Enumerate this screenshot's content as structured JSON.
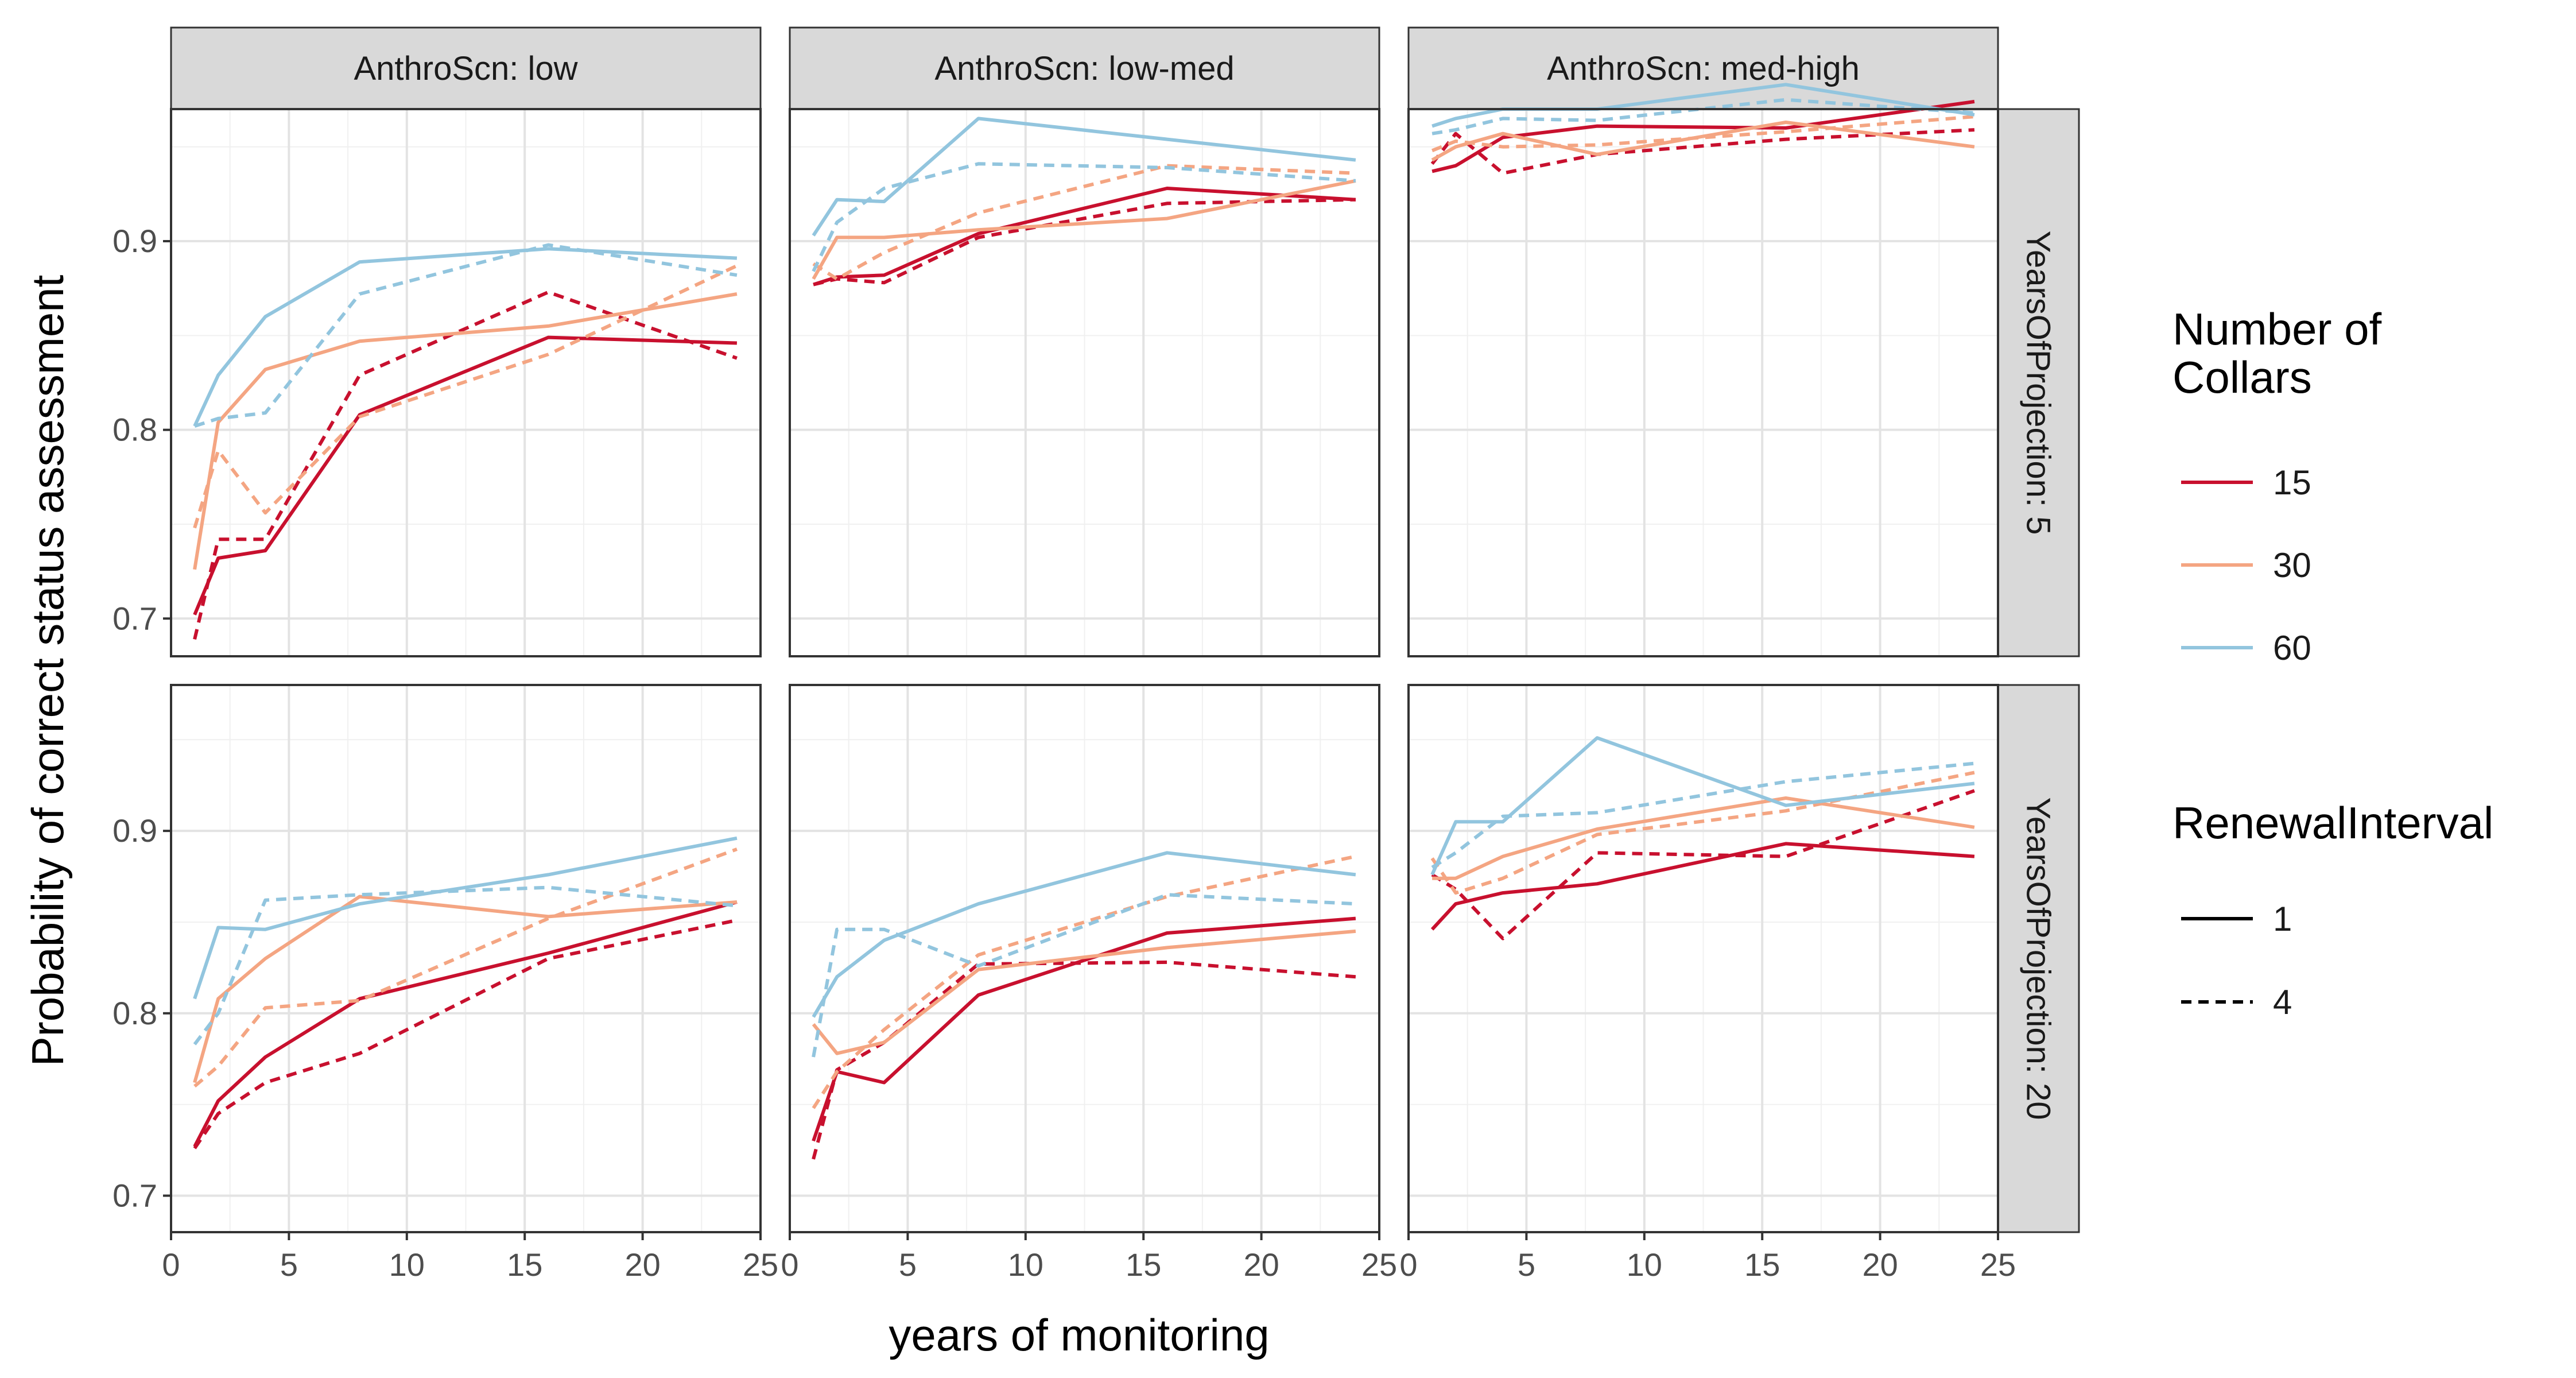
{
  "chart_data": {
    "type": "line",
    "facet_cols": {
      "label_prefix": "AnthroScn: ",
      "values": [
        "low",
        "low-med",
        "med-high"
      ]
    },
    "facet_rows": {
      "label_prefix": "YearsOfProjection: ",
      "values": [
        "5",
        "20"
      ]
    },
    "xlabel": "years of monitoring",
    "ylabel": "Probability of correct status assessment",
    "xlim": [
      0,
      25
    ],
    "xticks": [
      0,
      5,
      10,
      15,
      20,
      25
    ],
    "ylim_row1": [
      0.68,
      0.97
    ],
    "ylim_row2": [
      0.68,
      0.98
    ],
    "yticks": [
      0.7,
      0.8,
      0.9
    ],
    "ytick_labels": [
      "0.7",
      "0.8",
      "0.9"
    ],
    "grid": true,
    "x": [
      1,
      2,
      4,
      8,
      16,
      24
    ],
    "colors": {
      "15": "#c8102e",
      "30": "#f4a582",
      "60": "#92c5de"
    },
    "legend": {
      "placement": "right",
      "color_title_lines": [
        "Number of",
        " Collars"
      ],
      "color_entries": [
        "15",
        "30",
        "60"
      ],
      "linetype_title": "RenewalInterval",
      "linetype_entries": [
        "1",
        "4"
      ]
    },
    "panels": [
      {
        "col": "low",
        "row": "5",
        "series": [
          {
            "collars": "15",
            "renewal": "1",
            "values": [
              0.702,
              0.732,
              0.736,
              0.808,
              0.849,
              0.846
            ]
          },
          {
            "collars": "15",
            "renewal": "4",
            "values": [
              0.689,
              0.742,
              0.742,
              0.829,
              0.873,
              0.838
            ]
          },
          {
            "collars": "30",
            "renewal": "1",
            "values": [
              0.726,
              0.804,
              0.832,
              0.847,
              0.855,
              0.872
            ]
          },
          {
            "collars": "30",
            "renewal": "4",
            "values": [
              0.748,
              0.789,
              0.756,
              0.807,
              0.84,
              0.887
            ]
          },
          {
            "collars": "60",
            "renewal": "1",
            "values": [
              0.802,
              0.829,
              0.86,
              0.889,
              0.896,
              0.891
            ]
          },
          {
            "collars": "60",
            "renewal": "4",
            "values": [
              0.802,
              0.806,
              0.809,
              0.872,
              0.898,
              0.882
            ]
          }
        ]
      },
      {
        "col": "low-med",
        "row": "5",
        "series": [
          {
            "collars": "15",
            "renewal": "1",
            "values": [
              0.877,
              0.881,
              0.882,
              0.904,
              0.928,
              0.922
            ]
          },
          {
            "collars": "15",
            "renewal": "4",
            "values": [
              0.877,
              0.88,
              0.878,
              0.902,
              0.92,
              0.922
            ]
          },
          {
            "collars": "30",
            "renewal": "1",
            "values": [
              0.88,
              0.902,
              0.902,
              0.906,
              0.912,
              0.932
            ]
          },
          {
            "collars": "30",
            "renewal": "4",
            "values": [
              0.888,
              0.88,
              0.894,
              0.915,
              0.94,
              0.936
            ]
          },
          {
            "collars": "60",
            "renewal": "1",
            "values": [
              0.903,
              0.922,
              0.921,
              0.965,
              0.954,
              0.943
            ]
          },
          {
            "collars": "60",
            "renewal": "4",
            "values": [
              0.884,
              0.91,
              0.928,
              0.941,
              0.939,
              0.932
            ]
          }
        ]
      },
      {
        "col": "med-high",
        "row": "5",
        "series": [
          {
            "collars": "15",
            "renewal": "1",
            "values": [
              0.937,
              0.94,
              0.955,
              0.961,
              0.96,
              0.974
            ]
          },
          {
            "collars": "15",
            "renewal": "4",
            "values": [
              0.941,
              0.957,
              0.936,
              0.946,
              0.954,
              0.959
            ]
          },
          {
            "collars": "30",
            "renewal": "1",
            "values": [
              0.943,
              0.95,
              0.957,
              0.946,
              0.963,
              0.95
            ]
          },
          {
            "collars": "30",
            "renewal": "4",
            "values": [
              0.948,
              0.953,
              0.95,
              0.951,
              0.958,
              0.966
            ]
          },
          {
            "collars": "60",
            "renewal": "1",
            "values": [
              0.961,
              0.965,
              0.97,
              0.97,
              0.983,
              0.967
            ]
          },
          {
            "collars": "60",
            "renewal": "4",
            "values": [
              0.957,
              0.959,
              0.965,
              0.964,
              0.975,
              0.968
            ]
          }
        ]
      },
      {
        "col": "low",
        "row": "20",
        "series": [
          {
            "collars": "15",
            "renewal": "1",
            "values": [
              0.727,
              0.752,
              0.776,
              0.808,
              0.833,
              0.861
            ]
          },
          {
            "collars": "15",
            "renewal": "4",
            "values": [
              0.726,
              0.745,
              0.762,
              0.778,
              0.83,
              0.851
            ]
          },
          {
            "collars": "30",
            "renewal": "1",
            "values": [
              0.762,
              0.808,
              0.83,
              0.864,
              0.853,
              0.861
            ]
          },
          {
            "collars": "30",
            "renewal": "4",
            "values": [
              0.76,
              0.771,
              0.803,
              0.807,
              0.852,
              0.89
            ]
          },
          {
            "collars": "60",
            "renewal": "1",
            "values": [
              0.808,
              0.847,
              0.846,
              0.86,
              0.876,
              0.896
            ]
          },
          {
            "collars": "60",
            "renewal": "4",
            "values": [
              0.783,
              0.8,
              0.862,
              0.865,
              0.869,
              0.859
            ]
          }
        ]
      },
      {
        "col": "low-med",
        "row": "20",
        "series": [
          {
            "collars": "15",
            "renewal": "1",
            "values": [
              0.73,
              0.768,
              0.762,
              0.81,
              0.844,
              0.852
            ]
          },
          {
            "collars": "15",
            "renewal": "4",
            "values": [
              0.72,
              0.769,
              0.784,
              0.827,
              0.828,
              0.82
            ]
          },
          {
            "collars": "30",
            "renewal": "1",
            "values": [
              0.794,
              0.778,
              0.784,
              0.824,
              0.836,
              0.845
            ]
          },
          {
            "collars": "30",
            "renewal": "4",
            "values": [
              0.748,
              0.768,
              0.791,
              0.832,
              0.864,
              0.886
            ]
          },
          {
            "collars": "60",
            "renewal": "1",
            "values": [
              0.798,
              0.82,
              0.84,
              0.86,
              0.888,
              0.876
            ]
          },
          {
            "collars": "60",
            "renewal": "4",
            "values": [
              0.776,
              0.846,
              0.846,
              0.826,
              0.865,
              0.86
            ]
          }
        ]
      },
      {
        "col": "med-high",
        "row": "20",
        "series": [
          {
            "collars": "15",
            "renewal": "1",
            "values": [
              0.846,
              0.86,
              0.866,
              0.871,
              0.893,
              0.886
            ]
          },
          {
            "collars": "15",
            "renewal": "4",
            "values": [
              0.876,
              0.868,
              0.841,
              0.888,
              0.886,
              0.922
            ]
          },
          {
            "collars": "30",
            "renewal": "1",
            "values": [
              0.874,
              0.874,
              0.886,
              0.901,
              0.918,
              0.902
            ]
          },
          {
            "collars": "30",
            "renewal": "4",
            "values": [
              0.885,
              0.866,
              0.874,
              0.898,
              0.911,
              0.932
            ]
          },
          {
            "collars": "60",
            "renewal": "1",
            "values": [
              0.876,
              0.905,
              0.905,
              0.951,
              0.914,
              0.926
            ]
          },
          {
            "collars": "60",
            "renewal": "4",
            "values": [
              0.88,
              0.888,
              0.908,
              0.91,
              0.927,
              0.937
            ]
          }
        ]
      }
    ]
  }
}
